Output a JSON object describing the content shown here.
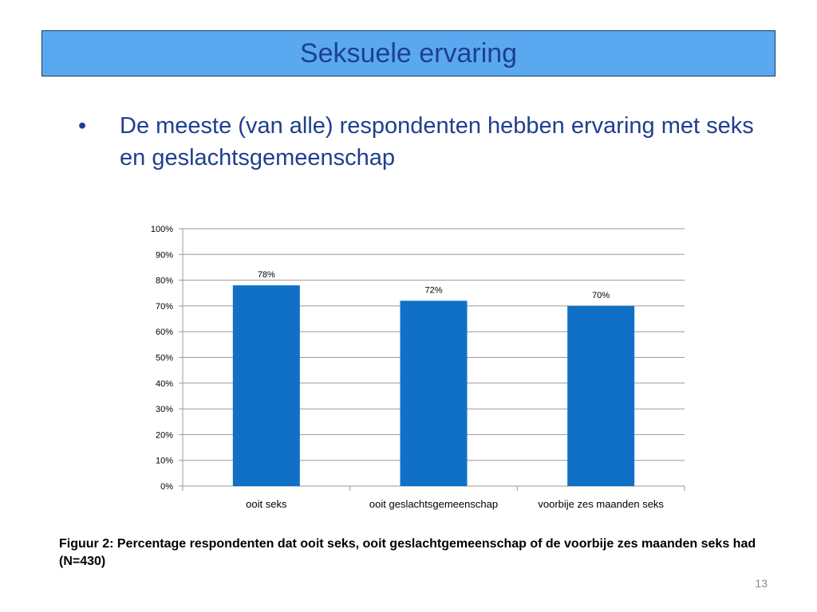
{
  "slide": {
    "title": "Seksuele ervaring",
    "bullet": "De meeste (van alle) respondenten hebben ervaring met seks en geslachtsgemeenschap",
    "caption": "Figuur 2: Percentage respondenten dat ooit seks, ooit geslachtgemeenschap of de voorbije zes maanden seks had (N=430)",
    "page_number": "13"
  },
  "colors": {
    "title_bg": "#5aa9f0",
    "title_text": "#1f3f8f",
    "bar": "#1070c8"
  },
  "chart_data": {
    "type": "bar",
    "categories": [
      "ooit seks",
      "ooit geslachtsgemeenschap",
      "voorbije zes maanden seks"
    ],
    "values": [
      78,
      72,
      70
    ],
    "data_labels": [
      "78%",
      "72%",
      "70%"
    ],
    "yticks": [
      "0%",
      "10%",
      "20%",
      "30%",
      "40%",
      "50%",
      "60%",
      "70%",
      "80%",
      "90%",
      "100%"
    ],
    "ylim": [
      0,
      100
    ],
    "grid": true,
    "legend": "none"
  }
}
